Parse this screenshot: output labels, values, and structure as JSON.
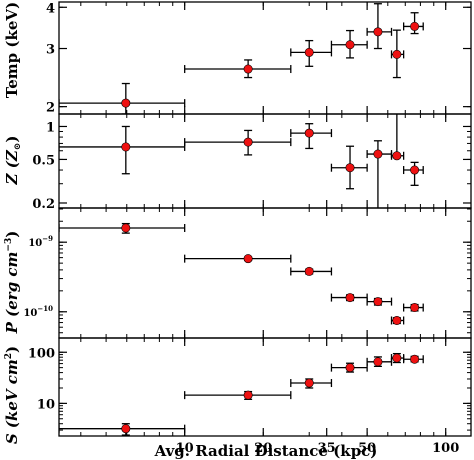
{
  "chart_data": {
    "type": "scatter",
    "x_scale": "log",
    "x_range_kpc": [
      3.3,
      125
    ],
    "xlabel": "Avg. Radial Distance (kpc)",
    "x_ticks": [
      10,
      20,
      35,
      50,
      100
    ],
    "x_tick_labels": [
      "10",
      "20",
      "35",
      "50",
      "100"
    ],
    "x_bins_kpc": [
      {
        "x": 5.95,
        "xlo": 3.3,
        "xhi": 10
      },
      {
        "x": 17.5,
        "xlo": 10,
        "xhi": 25.5
      },
      {
        "x": 30,
        "xlo": 25.5,
        "xhi": 36.5
      },
      {
        "x": 43,
        "xlo": 36.5,
        "xhi": 50
      },
      {
        "x": 55,
        "xlo": 50,
        "xhi": 62
      },
      {
        "x": 65,
        "xlo": 62,
        "xhi": 69
      },
      {
        "x": 76,
        "xlo": 69,
        "xhi": 82
      }
    ],
    "marker_color": "#ee1111",
    "panels": [
      {
        "id": "temp",
        "ylabel": "Temp (keV)",
        "y_scale": "log",
        "ylim": [
          1.9,
          4.15
        ],
        "y_ticks": [
          2,
          3,
          4
        ],
        "y_tick_labels": [
          "2",
          "3",
          "4"
        ],
        "y": [
          2.05,
          2.6,
          2.92,
          3.08,
          3.37,
          2.88,
          3.5
        ],
        "yerr_lo": [
          0.15,
          0.15,
          0.27,
          0.27,
          0.37,
          0.43,
          0.17
        ],
        "yerr_hi": [
          0.3,
          0.17,
          0.25,
          0.32,
          0.73,
          0.53,
          0.35
        ]
      },
      {
        "id": "abundance",
        "ylabel_main": "Z (Z",
        "ylabel_sun": "⊙",
        "ylabel_close": ")",
        "y_scale": "log",
        "ylim": [
          0.18,
          1.3
        ],
        "y_ticks": [
          0.2,
          0.5,
          1
        ],
        "y_tick_labels": [
          "0.2",
          "0.5",
          "1"
        ],
        "y": [
          0.65,
          0.72,
          0.87,
          0.42,
          0.56,
          0.54,
          0.4
        ],
        "yerr_lo": [
          0.28,
          0.17,
          0.24,
          0.15,
          0.39,
          0.02,
          0.11
        ],
        "yerr_hi": [
          0.35,
          0.2,
          0.19,
          0.24,
          0.18,
          1.5,
          0.07
        ]
      },
      {
        "id": "pressure",
        "ylabel_main": "P (erg cm",
        "ylabel_exp": "−3",
        "ylabel_close": ")",
        "y_scale": "log",
        "ylim": [
          4.2e-11,
          3.1e-09
        ],
        "y_ticks": [
          1e-10,
          1e-09
        ],
        "y_tick_labels_base": [
          "10",
          "10"
        ],
        "y_tick_labels_exp": [
          "−10",
          "−9"
        ],
        "y": [
          1.6e-09,
          5.8e-10,
          3.8e-10,
          1.6e-10,
          1.4e-10,
          7.5e-11,
          1.15e-10
        ],
        "yerr_lo": [
          2.5e-10,
          3e-11,
          3e-11,
          1.5e-11,
          1.5e-11,
          7e-12,
          1.2e-11
        ],
        "yerr_hi": [
          2.5e-10,
          3e-11,
          3e-11,
          1.5e-11,
          1.5e-11,
          7e-12,
          1.2e-11
        ]
      },
      {
        "id": "entropy",
        "ylabel_main": "S (keV cm",
        "ylabel_exp": "2",
        "ylabel_close": ")",
        "y_scale": "log",
        "ylim": [
          2.3,
          190
        ],
        "y_ticks": [
          10,
          100
        ],
        "y_tick_labels": [
          "10",
          "100"
        ],
        "y": [
          3.2,
          14.5,
          25,
          50,
          65,
          77,
          73
        ],
        "yerr_lo": [
          0.8,
          2.5,
          5,
          9,
          12,
          14,
          8
        ],
        "yerr_hi": [
          0.8,
          2.5,
          5,
          11,
          16,
          17,
          10
        ]
      }
    ]
  }
}
